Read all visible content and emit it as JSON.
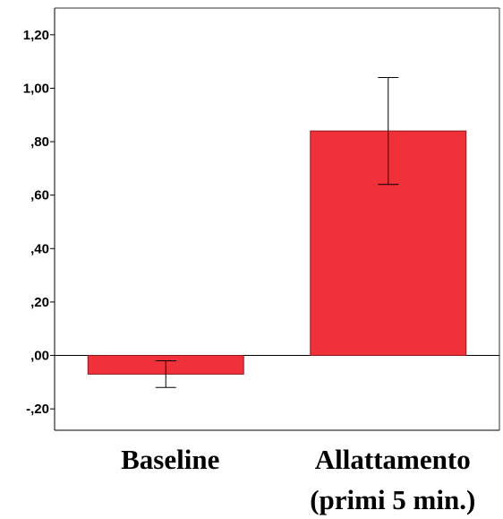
{
  "chart_data": {
    "type": "bar",
    "categories": [
      [
        "Baseline"
      ],
      [
        "Allattamento",
        "(primi 5 min.)"
      ]
    ],
    "values": [
      -0.07,
      0.84
    ],
    "error_bars": [
      {
        "low": -0.12,
        "high": -0.02
      },
      {
        "low": 0.64,
        "high": 1.04
      }
    ],
    "yticks": [
      -0.2,
      0,
      0.2,
      0.4,
      0.6,
      0.8,
      1.0,
      1.2
    ],
    "ytick_labels": [
      "-,20",
      ",00",
      ",20",
      ",40",
      ",60",
      ",80",
      "1,00",
      "1,20"
    ],
    "ylim": [
      -0.28,
      1.3
    ],
    "bar_color": "#f0313a",
    "bar_edge_color": "#8a1a1f",
    "axis_color": "#000000",
    "grid": false,
    "zero_line": true
  }
}
